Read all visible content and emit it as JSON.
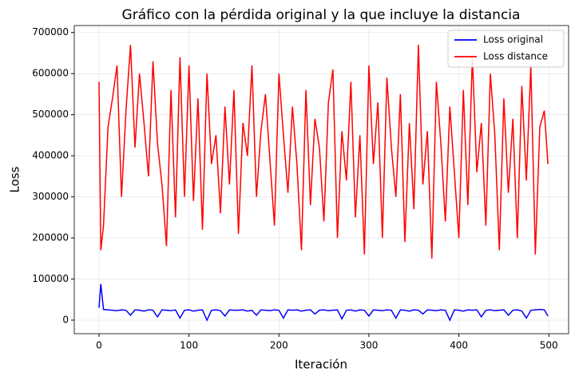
{
  "chart_data": {
    "type": "line",
    "title": "Gráfico con la pérdida original y la que incluye la distancia",
    "xlabel": "Iteración",
    "ylabel": "Loss",
    "x": [
      0,
      2,
      5,
      10,
      15,
      20,
      25,
      30,
      35,
      40,
      45,
      50,
      55,
      60,
      65,
      70,
      75,
      80,
      85,
      90,
      95,
      100,
      105,
      110,
      115,
      120,
      125,
      130,
      135,
      140,
      145,
      150,
      155,
      160,
      165,
      170,
      175,
      180,
      185,
      190,
      195,
      200,
      205,
      210,
      215,
      220,
      225,
      230,
      235,
      240,
      245,
      250,
      255,
      260,
      265,
      270,
      275,
      280,
      285,
      290,
      295,
      300,
      305,
      310,
      315,
      320,
      325,
      330,
      335,
      340,
      345,
      350,
      355,
      360,
      365,
      370,
      375,
      380,
      385,
      390,
      395,
      400,
      405,
      410,
      415,
      420,
      425,
      430,
      435,
      440,
      445,
      450,
      455,
      460,
      465,
      470,
      475,
      480,
      485,
      490,
      495,
      499
    ],
    "series": [
      {
        "name": "Loss original",
        "color": "#0000ff",
        "values": [
          30000,
          88000,
          26000,
          25000,
          24000,
          23000,
          25000,
          24000,
          12000,
          25000,
          24000,
          22000,
          25000,
          24000,
          8000,
          25000,
          24000,
          23000,
          25000,
          5000,
          24000,
          25000,
          22000,
          24000,
          25000,
          0,
          24000,
          25000,
          23000,
          10000,
          25000,
          24000,
          24000,
          25000,
          22000,
          24000,
          12000,
          25000,
          24000,
          23000,
          25000,
          24000,
          5000,
          25000,
          24000,
          25000,
          22000,
          24000,
          25000,
          15000,
          24000,
          25000,
          23000,
          24000,
          25000,
          3000,
          24000,
          25000,
          22000,
          25000,
          24000,
          10000,
          25000,
          24000,
          23000,
          25000,
          24000,
          5000,
          25000,
          24000,
          22000,
          25000,
          24000,
          15000,
          25000,
          24000,
          23000,
          25000,
          24000,
          0,
          25000,
          24000,
          22000,
          25000,
          24000,
          25000,
          8000,
          24000,
          25000,
          23000,
          24000,
          25000,
          12000,
          24000,
          25000,
          22000,
          5000,
          24000,
          25000,
          26000,
          25000,
          10000
        ]
      },
      {
        "name": "Loss distance",
        "color": "#ff0000",
        "values": [
          580000,
          170000,
          230000,
          470000,
          540000,
          620000,
          300000,
          510000,
          670000,
          420000,
          600000,
          480000,
          350000,
          630000,
          430000,
          330000,
          180000,
          560000,
          250000,
          640000,
          300000,
          620000,
          290000,
          540000,
          220000,
          600000,
          380000,
          450000,
          260000,
          520000,
          330000,
          560000,
          210000,
          480000,
          400000,
          620000,
          300000,
          460000,
          550000,
          390000,
          230000,
          600000,
          450000,
          310000,
          520000,
          380000,
          170000,
          560000,
          280000,
          490000,
          420000,
          240000,
          530000,
          610000,
          200000,
          460000,
          340000,
          580000,
          250000,
          450000,
          160000,
          620000,
          380000,
          530000,
          200000,
          590000,
          420000,
          300000,
          550000,
          190000,
          480000,
          270000,
          670000,
          330000,
          460000,
          150000,
          580000,
          430000,
          240000,
          520000,
          360000,
          200000,
          560000,
          280000,
          640000,
          360000,
          480000,
          230000,
          600000,
          450000,
          170000,
          540000,
          310000,
          490000,
          200000,
          570000,
          340000,
          620000,
          160000,
          470000,
          510000,
          380000
        ]
      }
    ],
    "xlim": [
      -27.5,
      522
    ],
    "ylim": [
      -33000,
      717000
    ],
    "xticks": [
      0,
      100,
      200,
      300,
      400,
      500
    ],
    "yticks": [
      0,
      100000,
      200000,
      300000,
      400000,
      500000,
      600000,
      700000
    ],
    "grid": true,
    "legend": "upper right"
  }
}
